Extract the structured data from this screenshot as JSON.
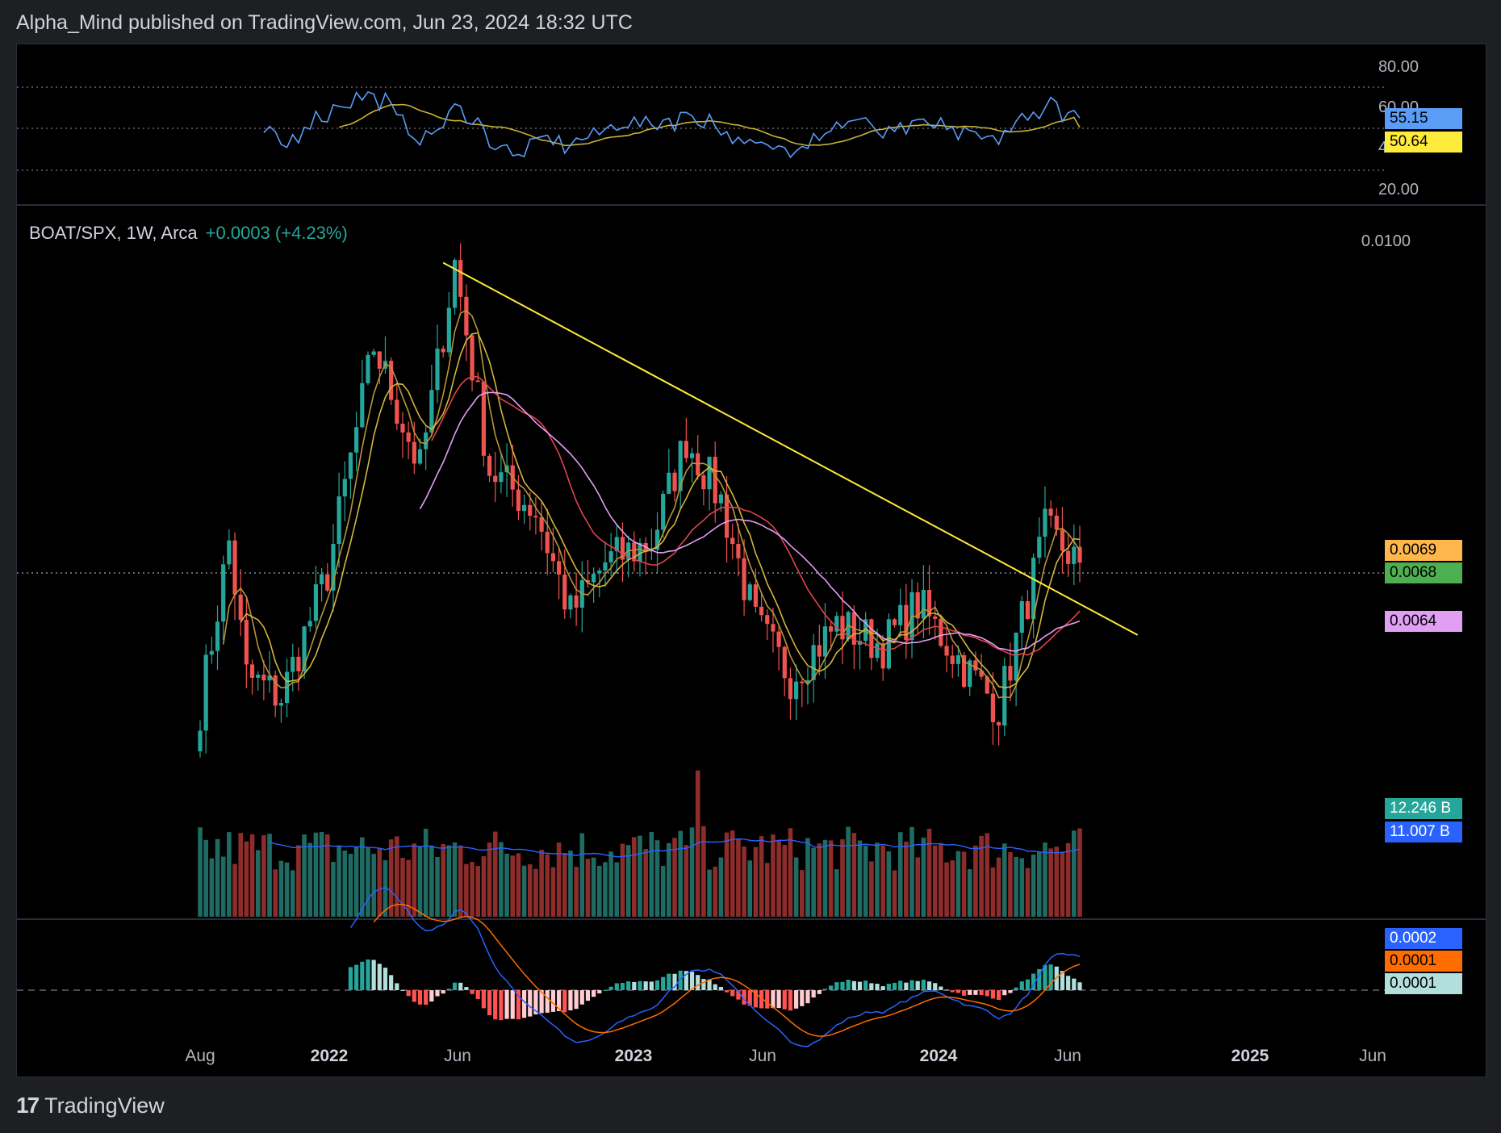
{
  "header": {
    "text": "Alpha_Mind published on TradingView.com, Jun 23, 2024 18:32 UTC"
  },
  "footer": {
    "brand": "TradingView",
    "logo_glyph": "17"
  },
  "colors": {
    "up": "#26a69a",
    "down": "#ef5350",
    "trendline": "#ffeb3b",
    "rsi": "#5b9cf6",
    "rsi_ma": "#c9b232",
    "ma_fast": "#b8953a",
    "ma_mid": "#e0434f",
    "ma_slow": "#e19ff4",
    "vol_ma": "#2962ff",
    "macd": "#2962ff",
    "signal": "#ff6d00"
  },
  "rsi_panel": {
    "ticks": [
      "80.00",
      "60.00",
      "40.00",
      "20.00"
    ],
    "badges": [
      {
        "text": "55.15",
        "bg": "#5b9cf6"
      },
      {
        "text": "50.64",
        "bg": "#ffeb3b"
      }
    ]
  },
  "price_panel": {
    "symbol": "BOAT/SPX, 1W, Arca",
    "change": "+0.0003 (+4.23%)",
    "ticks": [
      "0.0100"
    ],
    "badges": [
      {
        "text": "0.0069",
        "bg": "#ffb74d"
      },
      {
        "text": "0.0068",
        "bg": "#4caf50"
      },
      {
        "text": "0.0064",
        "bg": "#e19ff4"
      }
    ]
  },
  "volume_panel": {
    "badges": [
      {
        "text": "12.246 B",
        "bg": "#26a69a"
      },
      {
        "text": "11.007 B",
        "bg": "#2962ff"
      }
    ]
  },
  "macd_panel": {
    "badges": [
      {
        "text": "0.0002",
        "bg": "#2962ff"
      },
      {
        "text": "0.0001",
        "bg": "#ff6d00"
      },
      {
        "text": "0.0001",
        "bg": "#b2dfdb"
      }
    ]
  },
  "x_axis": {
    "labels": [
      {
        "text": "Aug",
        "bold": false
      },
      {
        "text": "2022",
        "bold": true
      },
      {
        "text": "Jun",
        "bold": false
      },
      {
        "text": "2023",
        "bold": true
      },
      {
        "text": "Jun",
        "bold": false
      },
      {
        "text": "2024",
        "bold": true
      },
      {
        "text": "Jun",
        "bold": false
      },
      {
        "text": "2025",
        "bold": true
      },
      {
        "text": "Jun",
        "bold": false
      }
    ]
  },
  "chart_data": {
    "type": "candlestick",
    "symbol": "BOAT/SPX",
    "interval": "1W",
    "price_anchors": [
      {
        "week": 0,
        "close": 0.0055
      },
      {
        "week": 5,
        "close": 0.0071
      },
      {
        "week": 8,
        "close": 0.0058
      },
      {
        "week": 14,
        "close": 0.0056
      },
      {
        "week": 22,
        "close": 0.0068
      },
      {
        "week": 30,
        "close": 0.009
      },
      {
        "week": 38,
        "close": 0.0078
      },
      {
        "week": 44,
        "close": 0.0098
      },
      {
        "week": 50,
        "close": 0.0078
      },
      {
        "week": 58,
        "close": 0.0074
      },
      {
        "week": 64,
        "close": 0.0064
      },
      {
        "week": 70,
        "close": 0.0069
      },
      {
        "week": 78,
        "close": 0.0071
      },
      {
        "week": 84,
        "close": 0.0081
      },
      {
        "week": 90,
        "close": 0.0075
      },
      {
        "week": 96,
        "close": 0.0063
      },
      {
        "week": 102,
        "close": 0.0058
      },
      {
        "week": 110,
        "close": 0.0063
      },
      {
        "week": 118,
        "close": 0.0061
      },
      {
        "week": 124,
        "close": 0.0065
      },
      {
        "week": 132,
        "close": 0.0059
      },
      {
        "week": 138,
        "close": 0.0055
      },
      {
        "week": 146,
        "close": 0.0072
      },
      {
        "week": 150,
        "close": 0.007
      },
      {
        "week": 152,
        "close": 0.0069
      }
    ],
    "trendline": {
      "from": {
        "week": 42,
        "price": 0.0098
      },
      "to": {
        "week": 162,
        "price": 0.0062
      }
    },
    "last_close": 0.0069,
    "rsi_last": 55.15,
    "rsi_ma_last": 50.64,
    "volume_last": "12.246 B",
    "volume_ma_last": "11.007 B"
  }
}
